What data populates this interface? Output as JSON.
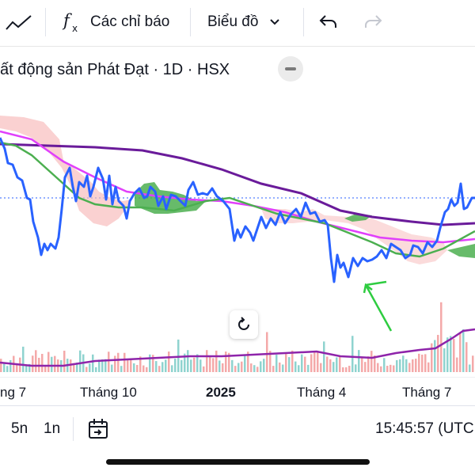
{
  "toolbar": {
    "indicators_label": "Các chỉ báo",
    "chart_type_label": "Biểu đồ"
  },
  "legend": {
    "symbol_text": "ất động sản Phát Đạt · 1D · HSX"
  },
  "xaxis": {
    "labels": [
      "ng 7",
      "Tháng 10",
      "2025",
      "Tháng 4",
      "Tháng 7"
    ]
  },
  "bottombar": {
    "ranges": [
      "5n",
      "1n"
    ],
    "time": "15:45:57 (UTC"
  },
  "colors": {
    "price": "#2962ff",
    "ma_long": "#6a1b9a",
    "ma_mid": "#e040fb",
    "ma_short": "#4caf50",
    "cloud_bull": "#4caf50",
    "cloud_bear": "#f8b8b8",
    "annotation_arrow": "#2ecc40",
    "volume_ma": "#8e24aa"
  },
  "icons": {
    "chart_style": "line-chart-icon",
    "indicators": "function-icon",
    "chart_type_dropdown": "chevron-down-icon",
    "undo": "undo-icon",
    "redo": "redo-icon",
    "minimize": "minus-icon",
    "reset": "reset-icon",
    "goto_date": "goto-date-icon"
  }
}
